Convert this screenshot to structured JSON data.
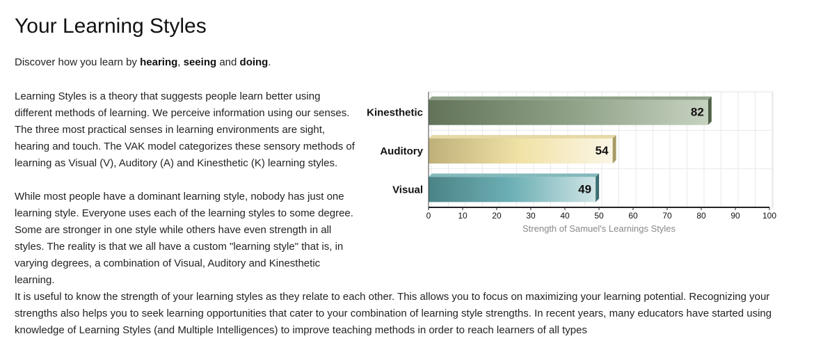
{
  "page": {
    "title": "Your Learning Styles",
    "intro": {
      "prefix": "Discover how you learn by ",
      "hearing": "hearing",
      "sep1": ", ",
      "seeing": "seeing",
      "sep2": " and ",
      "doing": "doing",
      "suffix": "."
    },
    "para1": "Learning Styles is a theory that suggests people learn better using different methods of learning. We perceive information using our senses. The three most practical senses in learning environments are sight, hearing and touch. The VAK model categorizes these sensory methods of learning as Visual (V), Auditory (A) and Kinesthetic (K) learning styles.",
    "para2": "While most people have a dominant learning style, nobody has just one learning style. Everyone uses each of the learning styles to some degree. Some are stronger in one style while others have even strength in all styles. The reality is that we all have a custom \"learning style\" that is, in varying degrees, a combination of Visual, Auditory and Kinesthetic learning.",
    "para3": "It is useful to know the strength of your learning styles as they relate to each other. This allows you to focus on maximizing your learning potential. Recognizing your strengths also helps you to seek learning opportunities that cater to your combination of learning style strengths. In recent years, many educators have started using knowledge of Learning Styles (and Multiple Intelligences) to improve teaching methods in order to reach learners of all types"
  },
  "chart_data": {
    "type": "bar",
    "orientation": "horizontal",
    "categories": [
      "Kinesthetic",
      "Auditory",
      "Visual"
    ],
    "values": [
      82,
      54,
      49
    ],
    "colors": [
      "#6f8567",
      "#d8c890",
      "#5c989c"
    ],
    "xlabel": "Strength of Samuel's Learnings Styles",
    "ylabel": "",
    "xlim": [
      0,
      100
    ],
    "ticks": [
      0,
      10,
      20,
      30,
      40,
      50,
      60,
      70,
      80,
      90,
      100
    ],
    "grid": true,
    "data_labels": true
  }
}
